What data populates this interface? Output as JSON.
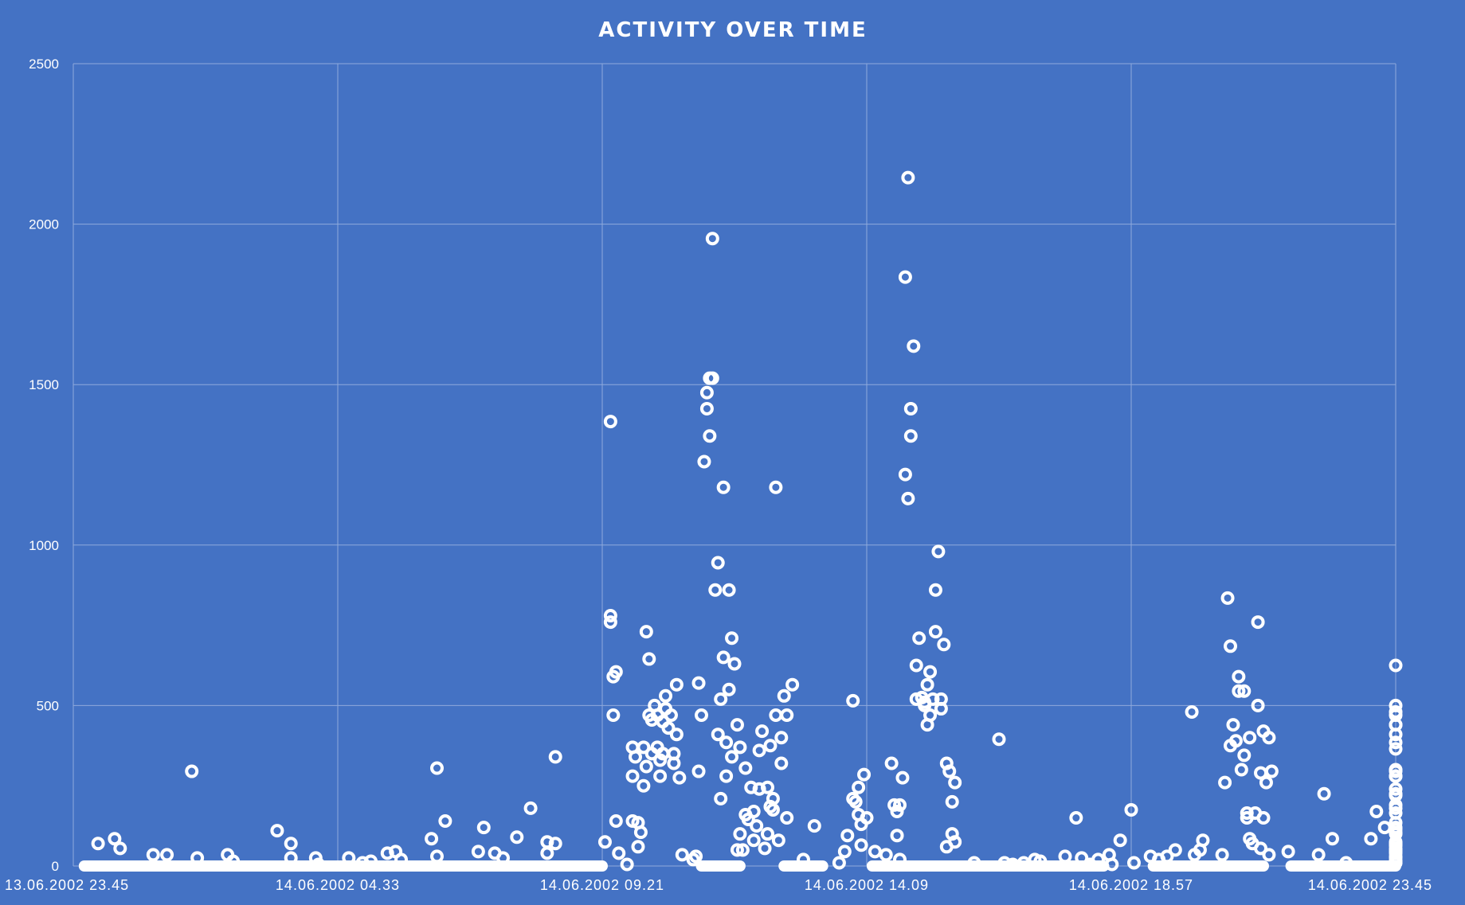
{
  "chart_data": {
    "type": "scatter",
    "title": "ACTIVITY OVER TIME",
    "xlabel": "",
    "ylabel": "",
    "x_range_hours": [
      0,
      24
    ],
    "ylim": [
      0,
      2500
    ],
    "y_ticks": [
      0,
      500,
      1000,
      1500,
      2000,
      2500
    ],
    "x_ticks": [
      {
        "label": "13.06.2002 23.45",
        "hour": 0
      },
      {
        "label": "14.06.2002 04.33",
        "hour": 4.8
      },
      {
        "label": "14.06.2002 09.21",
        "hour": 9.6
      },
      {
        "label": "14.06.2002 14.09",
        "hour": 14.4
      },
      {
        "label": "14.06.2002 18.57",
        "hour": 19.2
      },
      {
        "label": "14.06.2002 23.45",
        "hour": 24
      }
    ],
    "grid": true,
    "legend": "none",
    "marker_color": "#ffffff",
    "background_color": "#4472c4",
    "zero_band_hours": [
      [
        0.2,
        9.6
      ],
      [
        11.4,
        12.1
      ],
      [
        12.9,
        13.6
      ],
      [
        14.5,
        18.7
      ],
      [
        19.6,
        21.6
      ],
      [
        22.1,
        24
      ]
    ],
    "points": [
      [
        0.45,
        70
      ],
      [
        0.75,
        85
      ],
      [
        0.85,
        55
      ],
      [
        1.45,
        35
      ],
      [
        1.7,
        35
      ],
      [
        2.15,
        295
      ],
      [
        2.25,
        25
      ],
      [
        2.8,
        35
      ],
      [
        2.9,
        15
      ],
      [
        3.7,
        110
      ],
      [
        3.95,
        70
      ],
      [
        3.95,
        25
      ],
      [
        4.4,
        25
      ],
      [
        4.45,
        5
      ],
      [
        5.0,
        25
      ],
      [
        5.25,
        10
      ],
      [
        5.4,
        15
      ],
      [
        5.7,
        40
      ],
      [
        5.85,
        45
      ],
      [
        5.95,
        20
      ],
      [
        6.5,
        85
      ],
      [
        6.6,
        305
      ],
      [
        6.6,
        30
      ],
      [
        6.75,
        140
      ],
      [
        7.35,
        45
      ],
      [
        7.45,
        120
      ],
      [
        7.65,
        40
      ],
      [
        7.8,
        25
      ],
      [
        8.05,
        90
      ],
      [
        8.3,
        180
      ],
      [
        8.6,
        75
      ],
      [
        8.6,
        40
      ],
      [
        8.75,
        340
      ],
      [
        8.75,
        70
      ],
      [
        9.65,
        75
      ],
      [
        9.75,
        1385
      ],
      [
        9.75,
        760
      ],
      [
        9.75,
        780
      ],
      [
        9.8,
        470
      ],
      [
        9.8,
        590
      ],
      [
        9.85,
        605
      ],
      [
        9.85,
        140
      ],
      [
        9.9,
        40
      ],
      [
        10.05,
        5
      ],
      [
        10.15,
        140
      ],
      [
        10.15,
        370
      ],
      [
        10.15,
        280
      ],
      [
        10.2,
        340
      ],
      [
        10.25,
        60
      ],
      [
        10.25,
        135
      ],
      [
        10.3,
        105
      ],
      [
        10.35,
        250
      ],
      [
        10.35,
        370
      ],
      [
        10.4,
        730
      ],
      [
        10.4,
        310
      ],
      [
        10.45,
        470
      ],
      [
        10.45,
        645
      ],
      [
        10.5,
        455
      ],
      [
        10.5,
        350
      ],
      [
        10.55,
        500
      ],
      [
        10.6,
        370
      ],
      [
        10.6,
        470
      ],
      [
        10.65,
        280
      ],
      [
        10.65,
        330
      ],
      [
        10.7,
        450
      ],
      [
        10.7,
        350
      ],
      [
        10.75,
        530
      ],
      [
        10.75,
        490
      ],
      [
        10.8,
        430
      ],
      [
        10.85,
        470
      ],
      [
        10.9,
        350
      ],
      [
        10.9,
        320
      ],
      [
        10.95,
        410
      ],
      [
        10.95,
        565
      ],
      [
        11.0,
        275
      ],
      [
        11.05,
        35
      ],
      [
        11.25,
        20
      ],
      [
        11.3,
        30
      ],
      [
        11.35,
        570
      ],
      [
        11.35,
        295
      ],
      [
        11.4,
        470
      ],
      [
        11.45,
        1260
      ],
      [
        11.5,
        1425
      ],
      [
        11.5,
        1475
      ],
      [
        11.55,
        1520
      ],
      [
        11.55,
        1340
      ],
      [
        11.6,
        1955
      ],
      [
        11.6,
        1520
      ],
      [
        11.65,
        860
      ],
      [
        11.7,
        410
      ],
      [
        11.7,
        945
      ],
      [
        11.75,
        210
      ],
      [
        11.75,
        520
      ],
      [
        11.8,
        1180
      ],
      [
        11.8,
        650
      ],
      [
        11.85,
        385
      ],
      [
        11.85,
        280
      ],
      [
        11.9,
        550
      ],
      [
        11.9,
        860
      ],
      [
        11.95,
        340
      ],
      [
        11.95,
        710
      ],
      [
        12.0,
        630
      ],
      [
        12.05,
        440
      ],
      [
        12.05,
        50
      ],
      [
        12.1,
        100
      ],
      [
        12.1,
        370
      ],
      [
        12.15,
        50
      ],
      [
        12.2,
        160
      ],
      [
        12.2,
        305
      ],
      [
        12.25,
        145
      ],
      [
        12.3,
        245
      ],
      [
        12.35,
        80
      ],
      [
        12.35,
        170
      ],
      [
        12.4,
        125
      ],
      [
        12.45,
        240
      ],
      [
        12.45,
        360
      ],
      [
        12.5,
        420
      ],
      [
        12.55,
        55
      ],
      [
        12.6,
        245
      ],
      [
        12.6,
        100
      ],
      [
        12.65,
        185
      ],
      [
        12.65,
        375
      ],
      [
        12.7,
        175
      ],
      [
        12.7,
        210
      ],
      [
        12.75,
        470
      ],
      [
        12.75,
        1180
      ],
      [
        12.8,
        80
      ],
      [
        12.85,
        320
      ],
      [
        12.85,
        400
      ],
      [
        12.9,
        530
      ],
      [
        12.95,
        470
      ],
      [
        12.95,
        150
      ],
      [
        13.05,
        565
      ],
      [
        13.25,
        20
      ],
      [
        13.45,
        125
      ],
      [
        13.9,
        10
      ],
      [
        14.0,
        45
      ],
      [
        14.05,
        95
      ],
      [
        14.15,
        515
      ],
      [
        14.15,
        210
      ],
      [
        14.2,
        200
      ],
      [
        14.25,
        160
      ],
      [
        14.25,
        245
      ],
      [
        14.3,
        65
      ],
      [
        14.3,
        130
      ],
      [
        14.35,
        285
      ],
      [
        14.4,
        150
      ],
      [
        14.55,
        45
      ],
      [
        14.75,
        35
      ],
      [
        14.85,
        320
      ],
      [
        14.9,
        190
      ],
      [
        14.95,
        95
      ],
      [
        14.95,
        170
      ],
      [
        15.0,
        20
      ],
      [
        15.0,
        190
      ],
      [
        15.05,
        275
      ],
      [
        15.1,
        1220
      ],
      [
        15.1,
        1835
      ],
      [
        15.15,
        2145
      ],
      [
        15.15,
        1145
      ],
      [
        15.2,
        1340
      ],
      [
        15.2,
        1425
      ],
      [
        15.25,
        1620
      ],
      [
        15.3,
        520
      ],
      [
        15.3,
        625
      ],
      [
        15.35,
        710
      ],
      [
        15.4,
        525
      ],
      [
        15.45,
        510
      ],
      [
        15.45,
        500
      ],
      [
        15.5,
        565
      ],
      [
        15.5,
        440
      ],
      [
        15.55,
        470
      ],
      [
        15.55,
        605
      ],
      [
        15.6,
        520
      ],
      [
        15.65,
        730
      ],
      [
        15.65,
        860
      ],
      [
        15.7,
        980
      ],
      [
        15.75,
        490
      ],
      [
        15.75,
        520
      ],
      [
        15.8,
        690
      ],
      [
        15.85,
        320
      ],
      [
        15.85,
        60
      ],
      [
        15.9,
        295
      ],
      [
        15.95,
        100
      ],
      [
        15.95,
        200
      ],
      [
        16.0,
        260
      ],
      [
        16.0,
        75
      ],
      [
        16.35,
        10
      ],
      [
        16.8,
        395
      ],
      [
        16.9,
        10
      ],
      [
        17.05,
        5
      ],
      [
        17.25,
        10
      ],
      [
        17.45,
        20
      ],
      [
        17.55,
        15
      ],
      [
        18.0,
        30
      ],
      [
        18.2,
        150
      ],
      [
        18.3,
        25
      ],
      [
        18.45,
        5
      ],
      [
        18.6,
        20
      ],
      [
        18.8,
        35
      ],
      [
        18.85,
        5
      ],
      [
        19.0,
        80
      ],
      [
        19.2,
        175
      ],
      [
        19.25,
        10
      ],
      [
        19.55,
        30
      ],
      [
        19.7,
        20
      ],
      [
        19.85,
        30
      ],
      [
        20.0,
        50
      ],
      [
        20.3,
        480
      ],
      [
        20.35,
        35
      ],
      [
        20.45,
        50
      ],
      [
        20.5,
        80
      ],
      [
        20.85,
        35
      ],
      [
        20.9,
        260
      ],
      [
        20.95,
        835
      ],
      [
        21.0,
        685
      ],
      [
        21.0,
        375
      ],
      [
        21.05,
        440
      ],
      [
        21.1,
        390
      ],
      [
        21.15,
        545
      ],
      [
        21.15,
        590
      ],
      [
        21.2,
        300
      ],
      [
        21.25,
        545
      ],
      [
        21.25,
        345
      ],
      [
        21.3,
        165
      ],
      [
        21.3,
        150
      ],
      [
        21.35,
        400
      ],
      [
        21.35,
        85
      ],
      [
        21.4,
        70
      ],
      [
        21.45,
        165
      ],
      [
        21.5,
        760
      ],
      [
        21.5,
        500
      ],
      [
        21.55,
        55
      ],
      [
        21.55,
        290
      ],
      [
        21.6,
        420
      ],
      [
        21.6,
        150
      ],
      [
        21.65,
        260
      ],
      [
        21.7,
        35
      ],
      [
        21.7,
        400
      ],
      [
        21.75,
        295
      ],
      [
        22.05,
        45
      ],
      [
        22.6,
        35
      ],
      [
        22.7,
        225
      ],
      [
        22.85,
        85
      ],
      [
        23.1,
        10
      ],
      [
        23.55,
        85
      ],
      [
        23.65,
        170
      ],
      [
        23.8,
        120
      ],
      [
        24.0,
        25
      ],
      [
        24.2,
        180
      ],
      [
        24.2,
        295
      ],
      [
        24.25,
        480
      ],
      [
        24.25,
        70
      ],
      [
        24.3,
        40
      ],
      [
        24.3,
        50
      ],
      [
        24.35,
        190
      ],
      [
        24.35,
        115
      ],
      [
        24.5,
        15
      ],
      [
        24.6,
        15
      ],
      [
        24.7,
        10
      ],
      [
        25.9,
        385
      ],
      [
        25.95,
        220
      ],
      [
        26.0,
        240
      ],
      [
        26.05,
        165
      ],
      [
        26.1,
        280
      ],
      [
        26.15,
        625
      ],
      [
        26.15,
        500
      ],
      [
        26.2,
        470
      ],
      [
        26.2,
        70
      ],
      [
        26.25,
        120
      ],
      [
        26.3,
        10
      ],
      [
        26.35,
        45
      ],
      [
        26.4,
        300
      ],
      [
        26.45,
        105
      ],
      [
        26.5,
        410
      ],
      [
        26.5,
        135
      ],
      [
        26.55,
        75
      ],
      [
        26.6,
        55
      ],
      [
        26.65,
        225
      ],
      [
        26.7,
        440
      ],
      [
        27.05,
        30
      ],
      [
        27.1,
        70
      ],
      [
        27.35,
        65
      ],
      [
        27.45,
        100
      ],
      [
        27.5,
        365
      ],
      [
        27.55,
        440
      ],
      [
        27.65,
        280
      ],
      [
        27.7,
        65
      ]
    ]
  }
}
